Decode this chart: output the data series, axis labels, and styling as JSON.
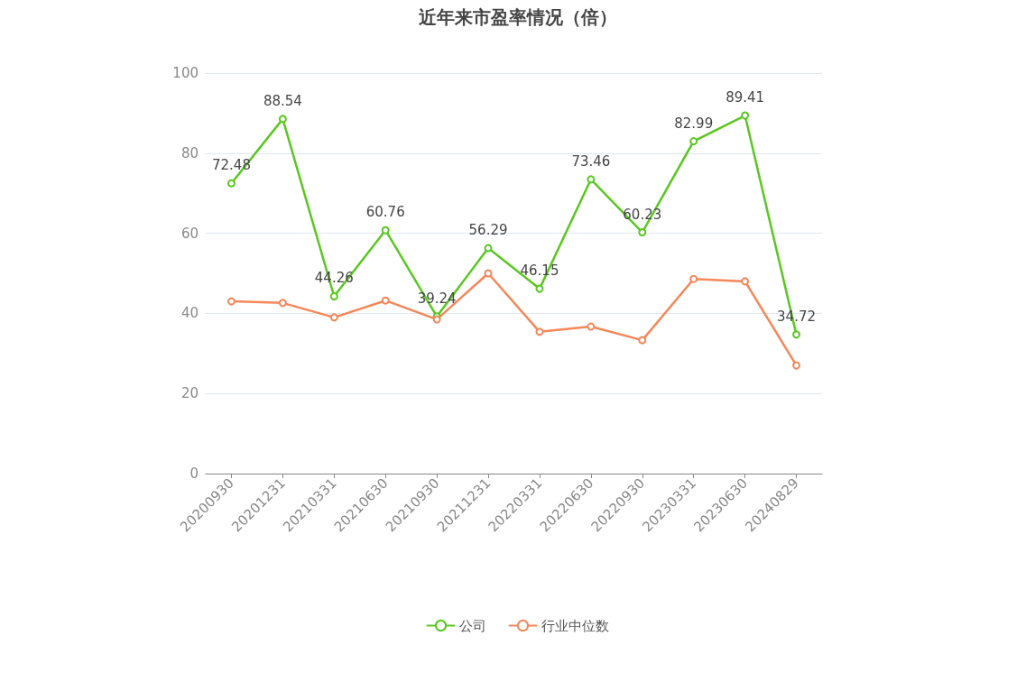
{
  "chart_data": {
    "type": "line",
    "title": "近年来市盈率情况（倍）",
    "categories": [
      "20200930",
      "20201231",
      "20210331",
      "20210630",
      "20210930",
      "20211231",
      "20220331",
      "20220630",
      "20220930",
      "20230331",
      "20230630",
      "20240829"
    ],
    "series": [
      {
        "name": "公司",
        "color": "#5ac722",
        "values": [
          72.48,
          88.54,
          44.26,
          60.76,
          39.24,
          56.29,
          46.15,
          73.46,
          60.23,
          82.99,
          89.41,
          34.72
        ],
        "value_labels": [
          "72.48",
          "88.54",
          "44.26",
          "60.76",
          "39.24",
          "56.29",
          "46.15",
          "73.46",
          "60.23",
          "82.99",
          "89.41",
          "34.72"
        ]
      },
      {
        "name": "行业中位数",
        "color": "#f5875a",
        "values": [
          43.0,
          42.6,
          39.0,
          43.2,
          38.5,
          50.0,
          35.4,
          36.7,
          33.3,
          48.6,
          48.0,
          27.0
        ]
      }
    ],
    "ylim": [
      0,
      100
    ],
    "yticks": [
      0,
      20,
      40,
      60,
      80,
      100
    ],
    "grid": "y",
    "legend": "bottom",
    "marker": "circle",
    "line_style": "solid"
  }
}
